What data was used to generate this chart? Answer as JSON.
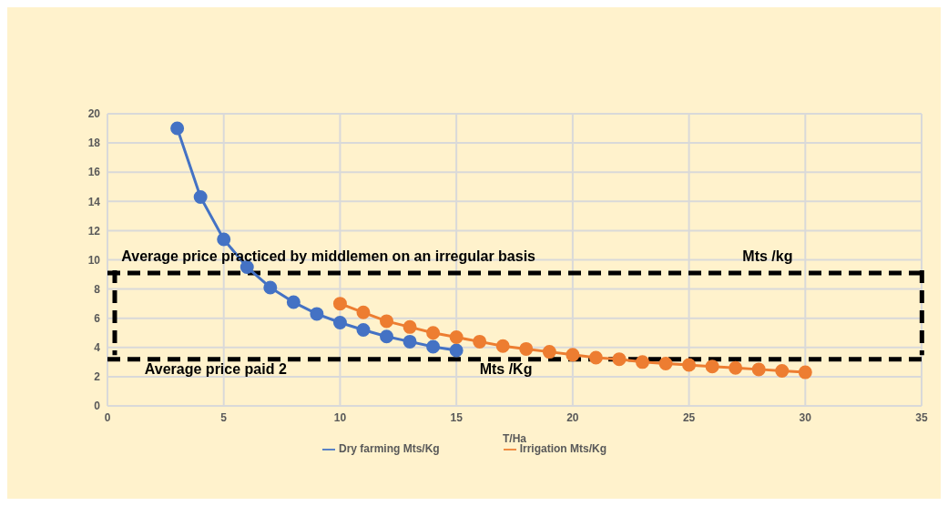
{
  "chart_data": {
    "type": "line",
    "xlabel": "T/Ha",
    "xlim": [
      0,
      35
    ],
    "xticks": [
      0,
      5,
      10,
      15,
      20,
      25,
      30,
      35
    ],
    "ylim": [
      0,
      20
    ],
    "yticks": [
      0,
      2,
      4,
      6,
      8,
      10,
      12,
      14,
      16,
      18,
      20
    ],
    "series": [
      {
        "name": "Dry farming Mts/Kg",
        "color": "#4472c4",
        "x": [
          3,
          4,
          5,
          6,
          7,
          8,
          9,
          10,
          11,
          12,
          13,
          14,
          15
        ],
        "values": [
          19,
          14.3,
          11.4,
          9.5,
          8.1,
          7.1,
          6.3,
          5.7,
          5.2,
          4.75,
          4.4,
          4.05,
          3.8
        ]
      },
      {
        "name": "Irrigation Mts/Kg",
        "color": "#ed7d31",
        "x": [
          10,
          11,
          12,
          13,
          14,
          15,
          16,
          17,
          18,
          19,
          20,
          21,
          22,
          23,
          24,
          25,
          26,
          27,
          28,
          29,
          30
        ],
        "values": [
          7,
          6.4,
          5.8,
          5.4,
          5,
          4.7,
          4.4,
          4.1,
          3.9,
          3.7,
          3.5,
          3.3,
          3.2,
          3,
          2.9,
          2.8,
          2.7,
          2.6,
          2.5,
          2.4,
          2.3
        ]
      }
    ],
    "ref_lines": [
      {
        "axis": "y",
        "value": 9.1,
        "color": "#000000",
        "line_style": "dashed"
      },
      {
        "axis": "y",
        "value": 3.2,
        "color": "#000000",
        "line_style": "dashed"
      }
    ],
    "annotations": [
      "Average price practiced by middlemen on an irregular basis",
      "Mts /kg",
      "Average price paid 2",
      "Mts /Kg"
    ],
    "grid": true,
    "legend": "bottom",
    "marker": "circle",
    "line_style": "solid"
  }
}
